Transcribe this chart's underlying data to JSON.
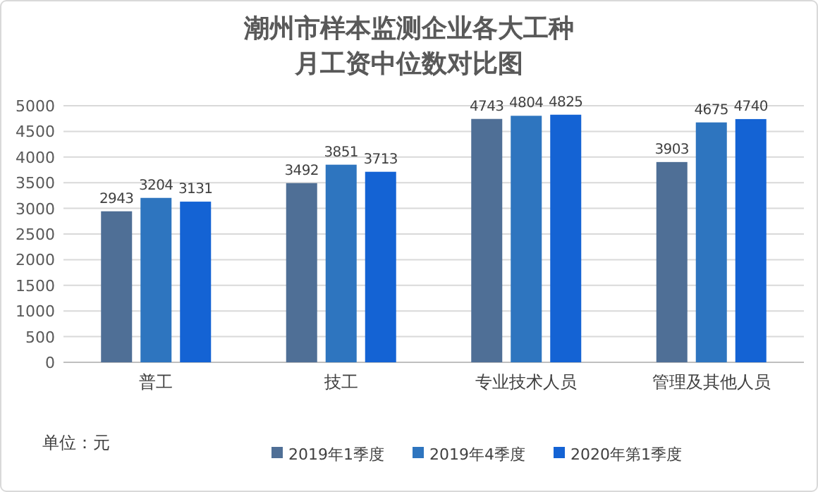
{
  "chart_data": {
    "type": "bar",
    "title": "潮州市样本监测企业各大工种月工资中位数对比图",
    "categories": [
      "普工",
      "技工",
      "专业技术人员",
      "管理及其他人员"
    ],
    "series": [
      {
        "name": "2019年1季度",
        "color": "#4f6f96",
        "values": [
          2943,
          3492,
          4743,
          3903
        ]
      },
      {
        "name": "2019年4季度",
        "color": "#2e75bf",
        "values": [
          3204,
          3851,
          4804,
          4675
        ]
      },
      {
        "name": "2020年第1季度",
        "color": "#1463d4",
        "values": [
          3131,
          3713,
          4825,
          4740
        ]
      }
    ],
    "ylim": [
      0,
      5000
    ],
    "yticks": [
      0,
      500,
      1000,
      1500,
      2000,
      2500,
      3000,
      3500,
      4000,
      4500,
      5000
    ],
    "grid": "y",
    "legend": "bottom",
    "data_labels": true,
    "annotations": [
      "单位：元"
    ]
  }
}
